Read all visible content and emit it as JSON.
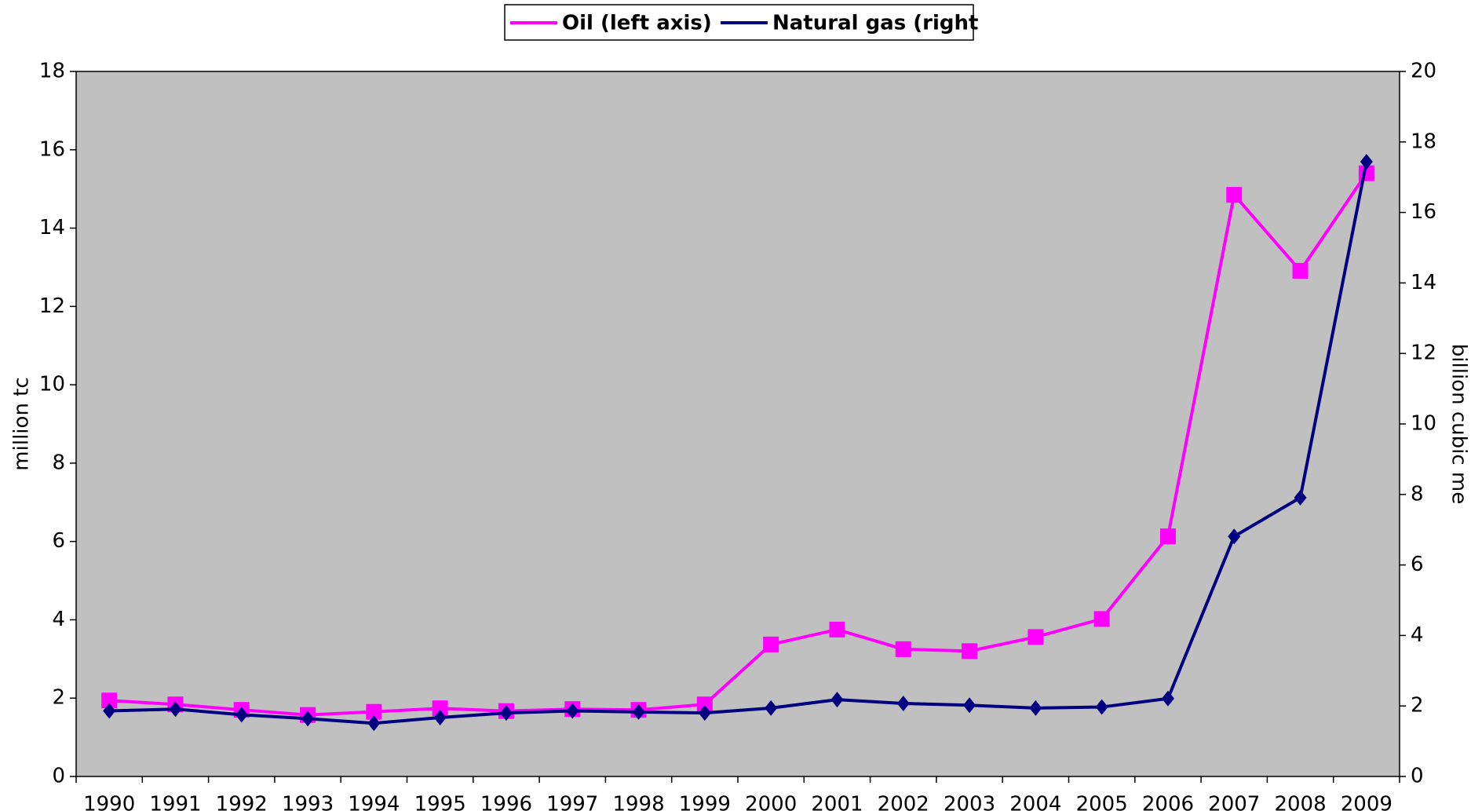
{
  "chart_data": {
    "type": "line",
    "categories": [
      "1990",
      "1991",
      "1992",
      "1993",
      "1994",
      "1995",
      "1996",
      "1997",
      "1998",
      "1999",
      "2000",
      "2001",
      "2002",
      "2003",
      "2004",
      "2005",
      "2006",
      "2007",
      "2008",
      "2009"
    ],
    "series": [
      {
        "name": "Oil (left axis)",
        "color": "#ff00ff",
        "marker": "square",
        "axis": "y",
        "values": [
          1.94,
          1.84,
          1.7,
          1.57,
          1.65,
          1.74,
          1.67,
          1.72,
          1.7,
          1.84,
          3.37,
          3.75,
          3.25,
          3.2,
          3.56,
          4.02,
          6.13,
          14.85,
          12.91,
          15.4
        ]
      },
      {
        "name": "Natural gas (right",
        "color": "#000080",
        "marker": "diamond",
        "axis": "y2",
        "values": [
          1.86,
          1.91,
          1.75,
          1.64,
          1.51,
          1.67,
          1.8,
          1.86,
          1.83,
          1.8,
          1.94,
          2.18,
          2.07,
          2.02,
          1.94,
          1.97,
          2.21,
          6.81,
          7.91,
          17.44
        ]
      }
    ],
    "ylabel": "million tc",
    "y2label": "billion cubic me",
    "ylim": [
      0,
      18
    ],
    "yticks": [
      0,
      2,
      4,
      6,
      8,
      10,
      12,
      14,
      16,
      18
    ],
    "y2lim": [
      0,
      20
    ],
    "y2ticks": [
      0,
      2,
      4,
      6,
      8,
      10,
      12,
      14,
      16,
      18,
      20
    ],
    "grid": false,
    "legend": "top",
    "background": "#c0c0c0"
  }
}
